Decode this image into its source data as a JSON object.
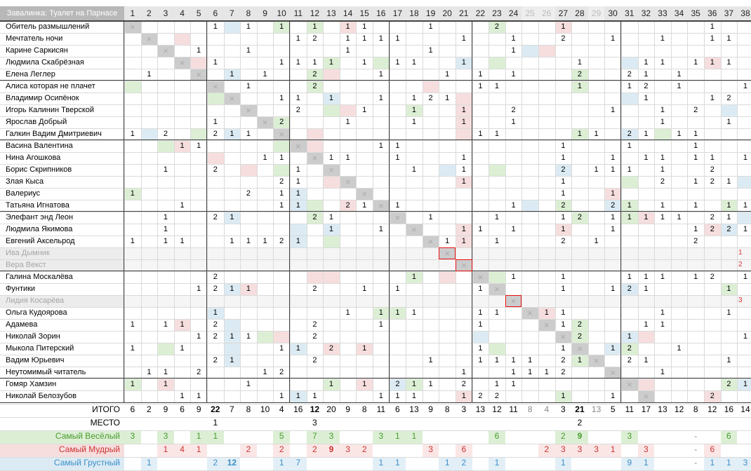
{
  "title": "Завалинка: Туалет на Парнасе",
  "columns": [
    "1",
    "2",
    "3",
    "4",
    "5",
    "6",
    "7",
    "8",
    "9",
    "10",
    "11",
    "12",
    "13",
    "14",
    "15",
    "16",
    "17",
    "18",
    "19",
    "20",
    "21",
    "22",
    "23",
    "24",
    "25",
    "26",
    "27",
    "28",
    "29",
    "30",
    "31",
    "32",
    "33",
    "34",
    "35",
    "36",
    "37",
    "38"
  ],
  "dim_columns": [
    25,
    26,
    29
  ],
  "groups": [
    5,
    10,
    16,
    21,
    30,
    33,
    38
  ],
  "rows": [
    {
      "name": "Обитель размышлений",
      "cells": {
        "6": "1",
        "8": "1",
        "10": "1",
        "12": "1",
        "14": "1",
        "15": "1",
        "19": "1",
        "23": "2",
        "27": "1",
        "36": "1"
      },
      "colors": {
        "7": "b",
        "10": "g",
        "12": "g",
        "14": "r",
        "23": "g",
        "27": "r"
      }
    },
    {
      "name": "Мечтатель ночи",
      "cells": {
        "11": "1",
        "12": "2",
        "14": "1",
        "15": "1",
        "16": "1",
        "17": "1",
        "21": "1",
        "24": "1",
        "27": "2",
        "30": "1",
        "33": "1",
        "36": "1",
        "37": "1"
      },
      "colors": {
        "4": "r"
      }
    },
    {
      "name": "Карине Саркисян",
      "cells": {
        "5": "1",
        "8": "1",
        "14": "1",
        "19": "1",
        "24": "1"
      },
      "colors": {
        "3": "g",
        "25": "b",
        "26": "r"
      }
    },
    {
      "name": "Людмила Скабрёзная",
      "cells": {
        "6": "1",
        "10": "1",
        "11": "1",
        "12": "1",
        "13": "1",
        "15": "1",
        "17": "1",
        "18": "1",
        "21": "1",
        "28": "1",
        "32": "1",
        "33": "1",
        "35": "1",
        "36": "1",
        "37": "1"
      },
      "colors": {
        "5": "r",
        "13": "g",
        "16": "g",
        "21": "b",
        "23": "g",
        "31": "b",
        "36": "r"
      }
    },
    {
      "name": "Елена Леглер",
      "cells": {
        "2": "1",
        "5": "1",
        "7": "1",
        "9": "1",
        "12": "2",
        "16": "1",
        "20": "1",
        "22": "1",
        "24": "1",
        "28": "2",
        "31": "2",
        "32": "1",
        "34": "1"
      },
      "colors": {
        "7": "b",
        "12": "g",
        "13": "r",
        "28": "g"
      }
    },
    {
      "name": "Алиса которая не плачет",
      "cells": {
        "6": "2",
        "8": "1",
        "12": "2",
        "22": "1",
        "23": "1",
        "28": "1",
        "31": "1",
        "32": "2",
        "34": "1",
        "38": "1"
      },
      "colors": {
        "1": "g",
        "12": "g",
        "19": "r",
        "28": "g"
      }
    },
    {
      "name": "Владимир Осипёнок",
      "cells": {
        "7": "1",
        "10": "1",
        "11": "1",
        "13": "1",
        "16": "1",
        "18": "1",
        "19": "2",
        "20": "1",
        "32": "1",
        "36": "1",
        "37": "2"
      },
      "colors": {
        "6": "g",
        "13": "b",
        "21": "r",
        "31": "b"
      }
    },
    {
      "name": "Игорь Калинин Тверской",
      "cells": {
        "11": "2",
        "15": "1",
        "18": "1",
        "21": "1",
        "24": "2",
        "30": "1",
        "33": "1",
        "35": "2"
      },
      "colors": {
        "13": "g",
        "14": "r",
        "18": "g",
        "21": "r",
        "37": "b"
      }
    },
    {
      "name": "Ярослав Добрый",
      "cells": {
        "6": "1",
        "10": "2",
        "14": "1",
        "18": "1",
        "21": "1",
        "24": "1",
        "33": "1",
        "37": "1"
      },
      "colors": {
        "10": "g",
        "21": "r"
      }
    },
    {
      "name": "Галкин Вадим Дмитриевич",
      "cells": {
        "1": "1",
        "3": "2",
        "6": "2",
        "7": "1",
        "8": "1",
        "22": "1",
        "23": "1",
        "28": "1",
        "29": "1",
        "31": "2",
        "32": "1",
        "34": "1",
        "35": "1"
      },
      "colors": {
        "2": "b",
        "5": "g",
        "7": "b",
        "12": "r",
        "21": "r",
        "28": "g",
        "31": "b",
        "33": "g"
      }
    },
    {
      "name": "Васина Валентина",
      "cells": {
        "4": "1",
        "5": "1",
        "16": "1",
        "17": "1",
        "27": "1",
        "31": "1",
        "35": "1"
      },
      "colors": {
        "3": "g",
        "4": "r",
        "10": "g",
        "12": "r"
      }
    },
    {
      "name": "Нина Агошкова",
      "cells": {
        "9": "1",
        "10": "1",
        "13": "1",
        "14": "1",
        "17": "1",
        "21": "1",
        "27": "1",
        "30": "1",
        "32": "1",
        "33": "1",
        "35": "1",
        "36": "1",
        "38": "1"
      },
      "colors": {
        "6": "r"
      }
    },
    {
      "name": "Борис Скрипников",
      "cells": {
        "3": "1",
        "6": "2",
        "11": "1",
        "13": "1",
        "18": "1",
        "21": "1",
        "27": "2",
        "29": "1",
        "30": "1",
        "31": "1",
        "33": "1",
        "36": "2"
      },
      "colors": {
        "8": "r",
        "10": "g",
        "13": "r",
        "20": "b",
        "23": "g",
        "27": "b"
      }
    },
    {
      "name": "Злая Кыса",
      "cells": {
        "10": "2",
        "11": "1",
        "21": "1",
        "27": "1",
        "33": "2",
        "35": "1",
        "36": "2",
        "37": "1"
      },
      "colors": {
        "13": "r",
        "21": "r",
        "31": "g",
        "38": "b"
      }
    },
    {
      "name": "Валериус",
      "cells": {
        "1": "1",
        "8": "2",
        "10": "1",
        "11": "1",
        "27": "1",
        "30": "1"
      },
      "colors": {
        "1": "g",
        "11": "b",
        "30": "r"
      }
    },
    {
      "name": "Татьяна Игнатова",
      "cells": {
        "4": "1",
        "10": "1",
        "11": "1",
        "14": "2",
        "15": "1",
        "17": "1",
        "24": "1",
        "27": "2",
        "30": "2",
        "31": "1",
        "33": "1",
        "35": "1",
        "37": "1",
        "38": "1"
      },
      "colors": {
        "11": "b",
        "12": "g",
        "14": "r",
        "25": "b",
        "27": "g",
        "30": "b",
        "31": "g",
        "37": "g"
      }
    },
    {
      "name": "Элефант энд Леон",
      "cells": {
        "3": "1",
        "6": "2",
        "7": "1",
        "12": "2",
        "13": "1",
        "19": "1",
        "23": "1",
        "27": "1",
        "28": "2",
        "30": "1",
        "31": "1",
        "32": "1",
        "33": "1",
        "34": "1",
        "36": "2",
        "37": "1"
      },
      "colors": {
        "7": "b",
        "12": "g",
        "28": "g",
        "31": "g",
        "32": "r",
        "38": "b"
      }
    },
    {
      "name": "Людмила Якимова",
      "cells": {
        "3": "1",
        "13": "1",
        "16": "1",
        "18": "2",
        "21": "1",
        "22": "1",
        "24": "1",
        "27": "1",
        "30": "1",
        "35": "1",
        "36": "2",
        "37": "2",
        "38": "1"
      },
      "colors": {
        "11": "b",
        "13": "b",
        "18": "g",
        "21": "r",
        "27": "r",
        "36": "r",
        "37": "b"
      }
    },
    {
      "name": "Евгений Аксельрод",
      "cells": {
        "1": "1",
        "3": "1",
        "4": "1",
        "7": "1",
        "8": "1",
        "9": "1",
        "10": "2",
        "11": "1",
        "20": "1",
        "21": "1",
        "23": "1",
        "27": "2",
        "29": "1",
        "35": "2"
      },
      "colors": {
        "11": "b",
        "13": "g",
        "21": "r"
      }
    },
    {
      "name": "Ива Дымник",
      "dim": true,
      "cells": {},
      "colors": {},
      "side": "1"
    },
    {
      "name": "Вера Векст",
      "dim": true,
      "cells": {},
      "colors": {},
      "side": "2"
    },
    {
      "name": "Галина Москалёва",
      "cells": {
        "6": "2",
        "18": "1",
        "22": "1",
        "24": "1",
        "27": "1",
        "31": "1",
        "32": "1",
        "33": "1",
        "35": "1",
        "36": "2",
        "38": "1"
      },
      "colors": {
        "12": "r",
        "13": "r",
        "18": "g",
        "20": "r",
        "23": "g"
      }
    },
    {
      "name": "Фунтики",
      "cells": {
        "5": "1",
        "6": "2",
        "7": "1",
        "8": "1",
        "12": "2",
        "15": "1",
        "17": "1",
        "22": "1",
        "27": "1",
        "30": "1",
        "31": "2",
        "32": "1",
        "37": "1"
      },
      "colors": {
        "7": "b",
        "8": "r",
        "31": "b",
        "37": "g"
      }
    },
    {
      "name": "Лидия Косарёва",
      "dim": true,
      "cells": {},
      "colors": {},
      "side": "3"
    },
    {
      "name": "Ольга Кудоярова",
      "cells": {
        "6": "1",
        "14": "1",
        "16": "1",
        "17": "1",
        "18": "1",
        "22": "1",
        "23": "1",
        "26": "1",
        "27": "1",
        "33": "1",
        "37": "1"
      },
      "colors": {
        "6": "b",
        "16": "g",
        "17": "g",
        "26": "r"
      }
    },
    {
      "name": "Адамева",
      "cells": {
        "1": "1",
        "3": "1",
        "4": "1",
        "6": "2",
        "12": "2",
        "16": "1",
        "22": "1",
        "27": "1",
        "28": "2",
        "32": "1",
        "33": "1"
      },
      "colors": {
        "4": "r",
        "7": "b",
        "28": "g"
      }
    },
    {
      "name": "Николай Зорин",
      "cells": {
        "5": "1",
        "6": "2",
        "7": "1",
        "8": "1",
        "12": "2",
        "28": "2",
        "31": "1",
        "38": "1"
      },
      "colors": {
        "7": "b",
        "9": "g",
        "10": "r",
        "22": "b",
        "28": "g",
        "31": "b",
        "32": "r"
      }
    },
    {
      "name": "Мыкола Питерский",
      "cells": {
        "1": "1",
        "4": "1",
        "10": "1",
        "11": "1",
        "13": "2",
        "15": "1",
        "22": "1",
        "27": "1",
        "30": "1",
        "31": "2",
        "34": "1"
      },
      "colors": {
        "3": "g",
        "7": "b",
        "11": "b",
        "13": "r",
        "15": "r",
        "23": "g",
        "30": "b",
        "31": "g"
      }
    },
    {
      "name": "Вадим Юрьевич",
      "cells": {
        "6": "2",
        "7": "1",
        "12": "2",
        "19": "1",
        "22": "1",
        "23": "1",
        "24": "1",
        "25": "1",
        "27": "2",
        "28": "1",
        "29": "1",
        "31": "2",
        "32": "1",
        "37": "1"
      },
      "colors": {
        "7": "b",
        "28": "g",
        "29": "r"
      }
    },
    {
      "name": "Неутомимый читатель",
      "cells": {
        "2": "1",
        "3": "1",
        "5": "2",
        "9": "1",
        "10": "2",
        "21": "1",
        "24": "1",
        "25": "1",
        "26": "1",
        "27": "2",
        "33": "1"
      },
      "colors": {}
    },
    {
      "name": "Гомяр Хамзин",
      "cells": {
        "1": "1",
        "3": "1",
        "8": "1",
        "13": "1",
        "15": "1",
        "17": "2",
        "18": "1",
        "19": "1",
        "21": "2",
        "23": "1",
        "24": "1",
        "37": "2",
        "38": "1"
      },
      "colors": {
        "1": "g",
        "3": "r",
        "13": "g",
        "15": "r",
        "17": "b",
        "18": "g",
        "32": "r",
        "37": "g",
        "38": "b"
      }
    },
    {
      "name": "Николай Белозубов",
      "cells": {
        "4": "1",
        "5": "1",
        "10": "1",
        "11": "1",
        "12": "1",
        "16": "1",
        "17": "1",
        "18": "1",
        "21": "1",
        "22": "2",
        "23": "2",
        "27": "1",
        "30": "1",
        "36": "2"
      },
      "colors": {
        "11": "b",
        "21": "r",
        "27": "g",
        "36": "r"
      }
    }
  ],
  "totals": {
    "label": "ИТОГО",
    "values": [
      "6",
      "2",
      "9",
      "6",
      "9",
      "22",
      "7",
      "8",
      "10",
      "4",
      "16",
      "12",
      "20",
      "9",
      "8",
      "11",
      "6",
      "13",
      "9",
      "8",
      "3",
      "13",
      "12",
      "11",
      "8",
      "4",
      "3",
      "21",
      "13",
      "5",
      "11",
      "17",
      "13",
      "12",
      "8",
      "12",
      "16",
      "14"
    ],
    "bold": [
      6,
      12,
      28
    ]
  },
  "place": {
    "label": "МЕСТО",
    "values": {
      "6": "1",
      "12": "3",
      "28": "2"
    }
  },
  "cheerful": {
    "label": "Самый Весёлый",
    "values": {
      "1": "3",
      "3": "3",
      "5": "1",
      "6": "1",
      "10": "5",
      "12": "7",
      "13": "3",
      "16": "3",
      "17": "1",
      "18": "1",
      "23": "6",
      "27": "2",
      "28": "9",
      "31": "3",
      "35": "-",
      "37": "6"
    }
  },
  "wise": {
    "label": "Самый Мудрый",
    "values": {
      "3": "1",
      "4": "4",
      "5": "1",
      "8": "2",
      "10": "2",
      "12": "2",
      "13": "9",
      "14": "3",
      "15": "2",
      "19": "3",
      "21": "6",
      "26": "2",
      "27": "3",
      "28": "3",
      "29": "3",
      "30": "1",
      "32": "3",
      "35": "-",
      "36": "6"
    }
  },
  "sad": {
    "label": "Самый Грустный",
    "values": {
      "2": "1",
      "6": "2",
      "7": "12",
      "10": "1",
      "11": "7",
      "16": "1",
      "17": "1",
      "20": "1",
      "21": "2",
      "23": "1",
      "27": "1",
      "31": "9",
      "32": "1",
      "35": "-",
      "36": "1",
      "37": "1",
      "38": "3"
    }
  }
}
